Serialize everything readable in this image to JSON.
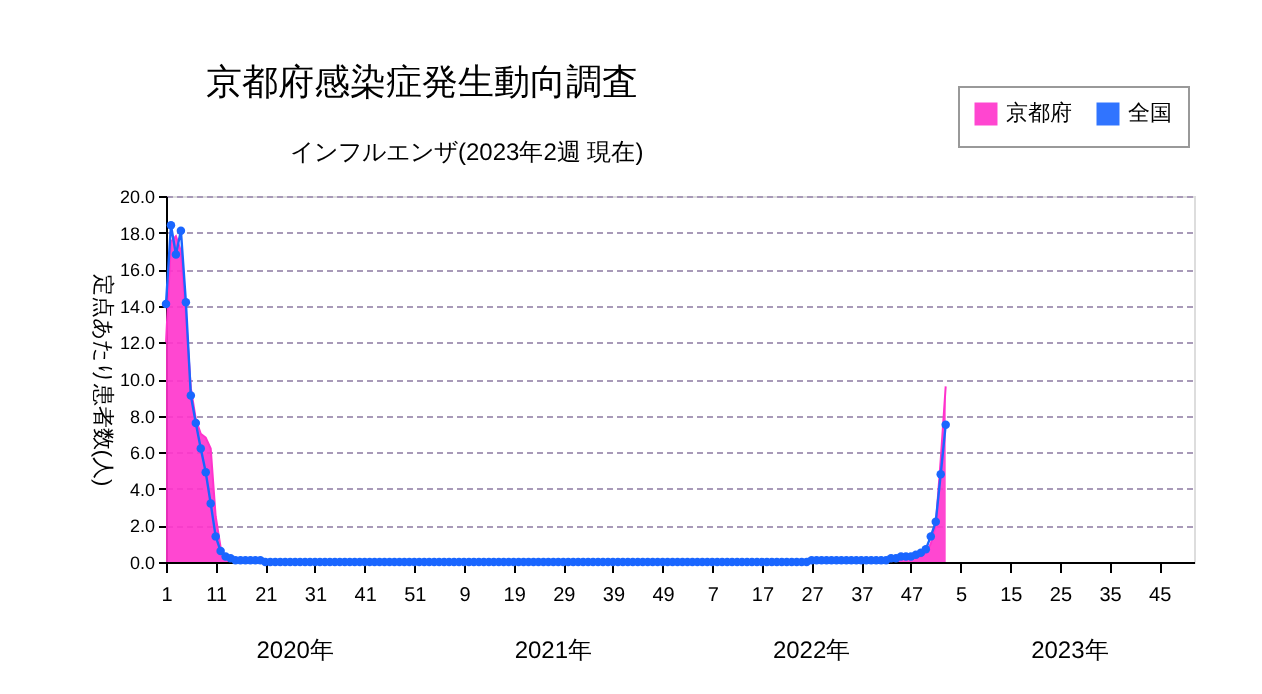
{
  "chart_data": {
    "type": "line",
    "title": "京都府感染症発生動向調査",
    "subtitle": "インフルエンザ(2023年2週 現在)",
    "ylabel": "定点あたり患者数(人)",
    "categories": [
      "1",
      null,
      null,
      null,
      null,
      null,
      null,
      null,
      null,
      null,
      "11",
      null,
      null,
      null,
      null,
      null,
      null,
      null,
      null,
      null,
      "21",
      null,
      null,
      null,
      null,
      null,
      null,
      null,
      null,
      null,
      "31",
      null,
      null,
      null,
      null,
      null,
      null,
      null,
      null,
      null,
      "41",
      null,
      null,
      null,
      null,
      null,
      null,
      null,
      null,
      null,
      "51",
      null,
      null,
      null,
      null,
      null,
      null,
      null,
      null,
      null,
      "9",
      null,
      null,
      null,
      null,
      null,
      null,
      null,
      null,
      null,
      "19",
      null,
      null,
      null,
      null,
      null,
      null,
      null,
      null,
      null,
      "29",
      null,
      null,
      null,
      null,
      null,
      null,
      null,
      null,
      null,
      "39",
      null,
      null,
      null,
      null,
      null,
      null,
      null,
      null,
      null,
      "49",
      null,
      null,
      null,
      null,
      null,
      null,
      null,
      null,
      null,
      "7",
      null,
      null,
      null,
      null,
      null,
      null,
      null,
      null,
      null,
      "17",
      null,
      null,
      null,
      null,
      null,
      null,
      null,
      null,
      null,
      "27",
      null,
      null,
      null,
      null,
      null,
      null,
      null,
      null,
      null,
      "37",
      null,
      null,
      null,
      null,
      null,
      null,
      null,
      null,
      null,
      "47",
      null,
      null,
      null,
      null,
      null,
      null,
      null,
      null,
      null,
      "5",
      null,
      null,
      null,
      null,
      null,
      null,
      null,
      null,
      null,
      "15",
      null,
      null,
      null,
      null,
      null,
      null,
      null,
      null,
      null,
      "25",
      null,
      null,
      null,
      null,
      null,
      null,
      null,
      null,
      null,
      "35",
      null,
      null,
      null,
      null,
      null,
      null,
      null,
      null,
      null,
      "45",
      null,
      null,
      null,
      null,
      null,
      null,
      null
    ],
    "series": [
      {
        "name": "京都府",
        "type": "area",
        "color": "#ff33cc",
        "values": [
          12.0,
          17.5,
          17.8,
          17.0,
          13.5,
          9.5,
          7.8,
          7.0,
          6.8,
          6.2,
          2.5,
          0.8,
          0.3,
          0.1,
          0,
          0,
          0,
          0,
          0,
          0,
          0,
          0,
          0,
          0,
          0,
          0,
          0,
          0,
          0,
          0,
          0,
          0,
          0,
          0,
          0,
          0,
          0,
          0,
          0,
          0,
          0,
          0,
          0,
          0,
          0,
          0,
          0,
          0,
          0,
          0,
          0,
          0,
          0,
          0,
          0,
          0,
          0,
          0,
          0,
          0,
          0,
          0,
          0,
          0,
          0,
          0,
          0,
          0,
          0,
          0,
          0,
          0,
          0,
          0,
          0,
          0,
          0,
          0,
          0,
          0,
          0,
          0,
          0,
          0,
          0,
          0,
          0,
          0,
          0,
          0,
          0,
          0,
          0,
          0,
          0,
          0,
          0,
          0,
          0,
          0,
          0,
          0,
          0,
          0,
          0,
          0,
          0,
          0,
          0,
          0,
          0,
          0,
          0,
          0,
          0,
          0,
          0,
          0,
          0,
          0,
          0,
          0,
          0,
          0,
          0,
          0,
          0,
          0,
          0,
          0,
          0,
          0,
          0,
          0,
          0,
          0,
          0,
          0,
          0,
          0,
          0,
          0,
          0,
          0,
          0,
          0.1,
          0.1,
          0.2,
          0.2,
          0.3,
          0.3,
          0.3,
          0.3,
          0.5,
          1.0,
          2.0,
          5.6,
          9.6,
          null,
          null,
          null,
          null,
          null,
          null,
          null,
          null,
          null,
          null,
          null,
          null,
          null,
          null,
          null,
          null,
          null,
          null,
          null,
          null,
          null,
          null,
          null,
          null,
          null,
          null,
          null,
          null,
          null,
          null,
          null,
          null,
          null,
          null,
          null,
          null,
          null,
          null,
          null,
          null,
          null,
          null,
          null,
          null,
          null,
          null,
          null,
          null,
          null,
          null
        ]
      },
      {
        "name": "全国",
        "marker": "circle",
        "color": "#1a66ff",
        "values": [
          14.1,
          18.4,
          16.8,
          18.1,
          14.2,
          9.1,
          7.6,
          6.2,
          4.9,
          3.2,
          1.4,
          0.6,
          0.3,
          0.2,
          0.1,
          0.1,
          0.1,
          0.1,
          0.1,
          0.1,
          0,
          0,
          0,
          0,
          0,
          0,
          0,
          0,
          0,
          0,
          0,
          0,
          0,
          0,
          0,
          0,
          0,
          0,
          0,
          0,
          0,
          0,
          0,
          0,
          0,
          0,
          0,
          0,
          0,
          0,
          0,
          0,
          0,
          0,
          0,
          0,
          0,
          0,
          0,
          0,
          0,
          0,
          0,
          0,
          0,
          0,
          0,
          0,
          0,
          0,
          0,
          0,
          0,
          0,
          0,
          0,
          0,
          0,
          0,
          0,
          0,
          0,
          0,
          0,
          0,
          0,
          0,
          0,
          0,
          0,
          0,
          0,
          0,
          0,
          0,
          0,
          0,
          0,
          0,
          0,
          0,
          0,
          0,
          0,
          0,
          0,
          0,
          0,
          0,
          0,
          0,
          0,
          0,
          0,
          0,
          0,
          0,
          0,
          0,
          0,
          0,
          0,
          0,
          0,
          0,
          0,
          0,
          0,
          0,
          0,
          0.1,
          0.1,
          0.1,
          0.1,
          0.1,
          0.1,
          0.1,
          0.1,
          0.1,
          0.1,
          0.1,
          0.1,
          0.1,
          0.1,
          0.1,
          0.1,
          0.2,
          0.2,
          0.3,
          0.3,
          0.3,
          0.4,
          0.5,
          0.7,
          1.4,
          2.2,
          4.8,
          7.5,
          null,
          null,
          null,
          null,
          null,
          null,
          null,
          null,
          null,
          null,
          null,
          null,
          null,
          null,
          null,
          null,
          null,
          null,
          null,
          null,
          null,
          null,
          null,
          null,
          null,
          null,
          null,
          null,
          null,
          null,
          null,
          null,
          null,
          null,
          null,
          null,
          null,
          null,
          null,
          null,
          null,
          null,
          null,
          null,
          null,
          null,
          null,
          null,
          null,
          null
        ]
      }
    ],
    "ylim": [
      0,
      20
    ],
    "yticks": [
      {
        "value": 0,
        "label": "0.0"
      },
      {
        "value": 2,
        "label": "2.0"
      },
      {
        "value": 4,
        "label": "4.0"
      },
      {
        "value": 6,
        "label": "6.0"
      },
      {
        "value": 8,
        "label": "8.0"
      },
      {
        "value": 10,
        "label": "10.0"
      },
      {
        "value": 12,
        "label": "12.0"
      },
      {
        "value": 14,
        "label": "14.0"
      },
      {
        "value": 16,
        "label": "16.0"
      },
      {
        "value": 18,
        "label": "18.0"
      },
      {
        "value": 20,
        "label": "20.0"
      }
    ],
    "annotations": [
      "2020年",
      "2021年",
      "2022年",
      "2023年"
    ],
    "grid": "y",
    "legend": "top right"
  }
}
